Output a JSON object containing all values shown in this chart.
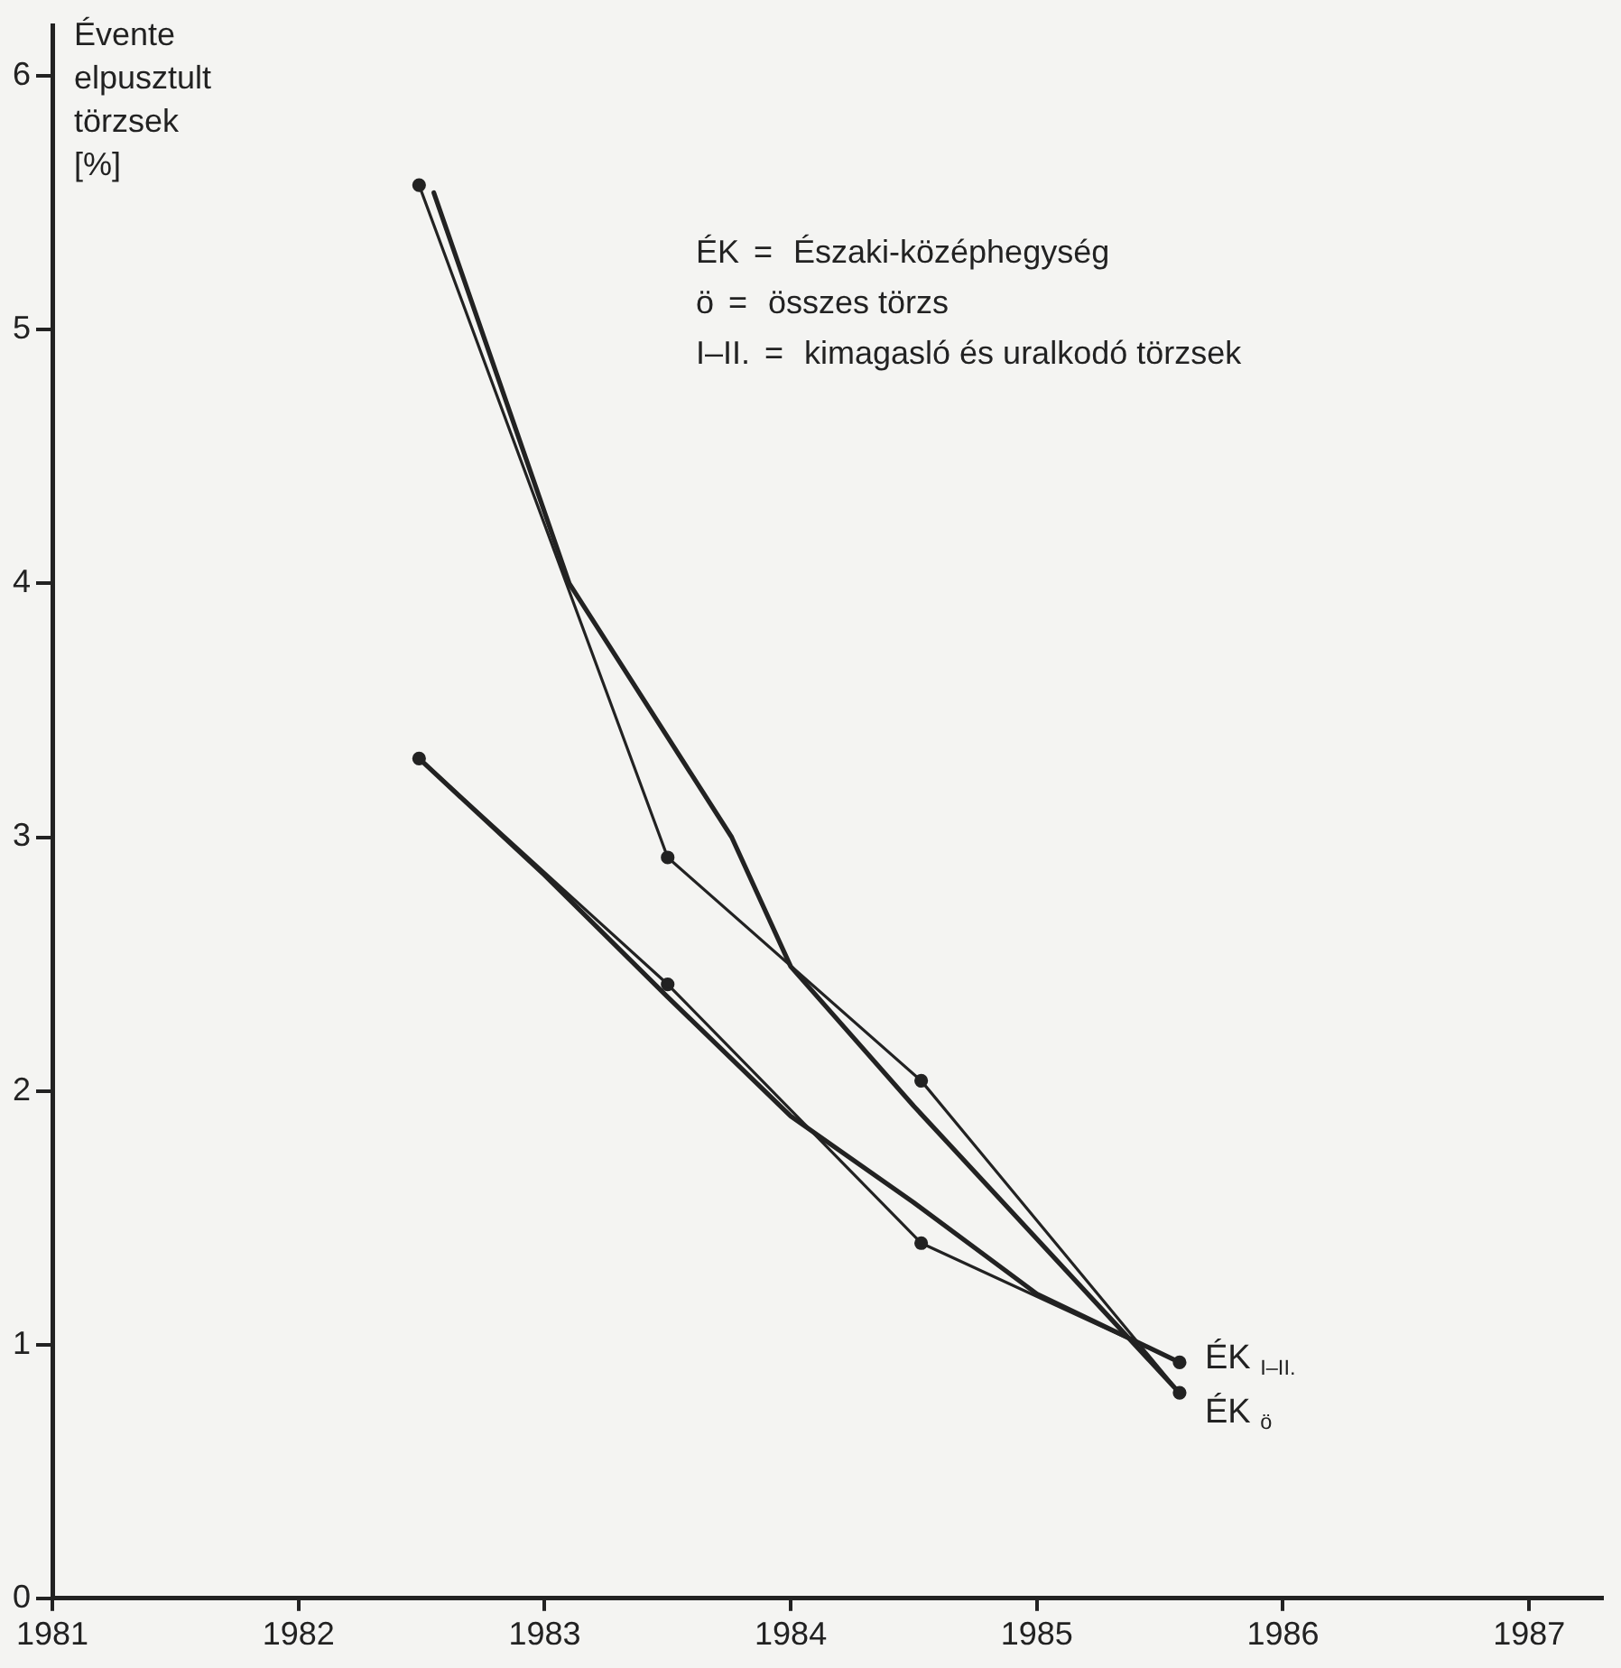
{
  "chart_data": {
    "type": "line",
    "ylabel": "Évente elpusztult törzsek [%]",
    "annotations": [
      "ÉK = Északi-középhegység",
      "ö = összes törzs",
      "I–II. = kimagasló és uralkodó törzsek"
    ],
    "xlim": [
      1981,
      1987.3
    ],
    "xticks": [
      1981,
      1982,
      1983,
      1984,
      1985,
      1986,
      1987
    ],
    "ylim": [
      0,
      6.2
    ],
    "yticks": [
      0,
      1,
      2,
      3,
      4,
      5,
      6
    ],
    "grid": false,
    "legend": false,
    "line_style": "solid",
    "series": [
      {
        "name": "ÉK $_{I–II.}$",
        "color": "#222222",
        "marker": "circle",
        "x": [
          1982.49,
          1983.5,
          1984.53,
          1985.58
        ],
        "values": [
          3.31,
          2.42,
          1.4,
          0.93
        ]
      },
      {
        "name": "ÉK $_{ö}$",
        "color": "#222222",
        "marker": "circle",
        "x": [
          1982.49,
          1983.5,
          1984.53,
          1985.58
        ],
        "values": [
          5.57,
          2.92,
          2.04,
          0.81
        ]
      },
      {
        "color": "#222222",
        "marker": "none",
        "x": [
          1982.49,
          1983.0,
          1983.5,
          1984.0,
          1984.5,
          1985.0,
          1985.58
        ],
        "values": [
          3.31,
          2.85,
          2.37,
          1.9,
          1.56,
          1.2,
          0.93
        ]
      },
      {
        "color": "#222222",
        "marker": "none",
        "x": [
          1982.55,
          1983.1,
          1983.76,
          1984.0,
          1984.5,
          1985.56
        ],
        "values": [
          5.54,
          4.0,
          3.0,
          2.49,
          1.94,
          0.83
        ]
      }
    ]
  }
}
